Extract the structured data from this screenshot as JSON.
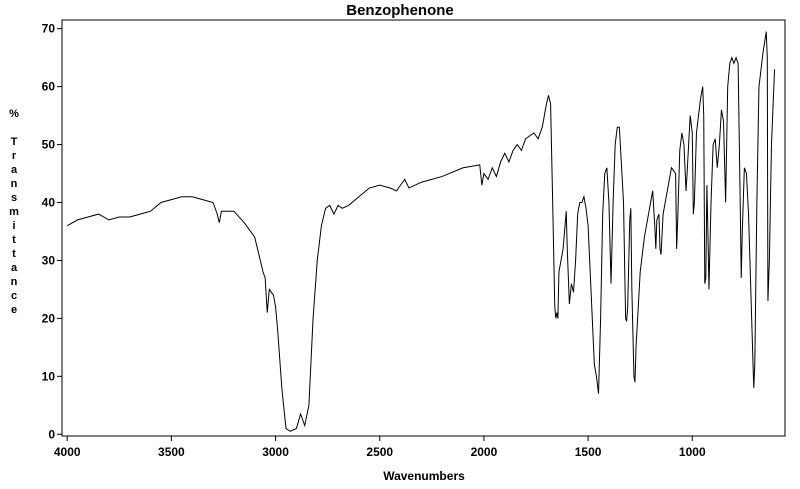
{
  "chart_data": {
    "type": "line",
    "title": "Benzophenone",
    "x_label": "Wavenumbers",
    "y_label": "% Transmittance",
    "xlim": [
      4025,
      555
    ],
    "ylim": [
      -0.3,
      71.5
    ],
    "xticks": [
      4000,
      3500,
      3000,
      2500,
      2000,
      1500,
      1000
    ],
    "yticks": [
      0,
      10,
      20,
      30,
      40,
      50,
      60,
      70
    ],
    "series": [
      {
        "color": "#000000",
        "x": [
          4000,
          3950,
          3900,
          3850,
          3800,
          3750,
          3700,
          3650,
          3600,
          3550,
          3500,
          3450,
          3400,
          3350,
          3300,
          3280,
          3270,
          3260,
          3200,
          3150,
          3100,
          3080,
          3060,
          3050,
          3040,
          3030,
          3010,
          3000,
          2990,
          2970,
          2950,
          2930,
          2900,
          2880,
          2860,
          2840,
          2820,
          2800,
          2780,
          2760,
          2740,
          2720,
          2700,
          2680,
          2650,
          2600,
          2550,
          2500,
          2450,
          2420,
          2400,
          2380,
          2360,
          2300,
          2200,
          2100,
          2050,
          2020,
          2010,
          2000,
          1980,
          1960,
          1940,
          1920,
          1900,
          1880,
          1860,
          1840,
          1820,
          1800,
          1760,
          1740,
          1720,
          1700,
          1690,
          1680,
          1670,
          1660,
          1655,
          1650,
          1645,
          1640,
          1620,
          1605,
          1600,
          1590,
          1580,
          1570,
          1560,
          1550,
          1540,
          1530,
          1520,
          1510,
          1500,
          1490,
          1470,
          1460,
          1450,
          1440,
          1430,
          1420,
          1410,
          1400,
          1390,
          1380,
          1370,
          1360,
          1350,
          1330,
          1320,
          1315,
          1310,
          1300,
          1295,
          1290,
          1280,
          1275,
          1270,
          1250,
          1230,
          1210,
          1200,
          1190,
          1180,
          1175,
          1170,
          1160,
          1155,
          1150,
          1140,
          1120,
          1100,
          1080,
          1075,
          1070,
          1060,
          1050,
          1040,
          1030,
          1025,
          1010,
          1000,
          995,
          990,
          980,
          970,
          960,
          950,
          945,
          940,
          935,
          930,
          925,
          920,
          910,
          900,
          890,
          880,
          870,
          860,
          850,
          840,
          830,
          820,
          810,
          800,
          790,
          780,
          770,
          765,
          760,
          750,
          740,
          730,
          715,
          705,
          700,
          690,
          680,
          660,
          645,
          640,
          637,
          630,
          620,
          605
        ],
        "values": [
          36,
          37,
          37.5,
          38,
          37,
          37.5,
          37.5,
          38,
          38.5,
          40,
          40.5,
          41,
          41,
          40.5,
          40,
          38,
          36.5,
          38.5,
          38.5,
          36.5,
          34,
          31,
          28,
          27,
          21,
          25,
          24,
          22,
          18,
          8,
          1,
          0.5,
          1,
          3.5,
          1.5,
          5,
          20,
          30,
          36,
          39,
          39.5,
          38,
          39.5,
          39,
          39.5,
          41,
          42.5,
          43,
          42.5,
          42,
          43,
          44,
          42.5,
          43.5,
          44.5,
          46,
          46.3,
          46.5,
          43,
          45,
          44,
          46,
          44.5,
          47,
          48.5,
          47,
          49,
          50,
          49,
          51,
          52,
          51,
          53,
          57,
          58.5,
          57,
          40,
          22,
          20,
          21,
          20,
          28,
          32,
          38.5,
          32,
          22.5,
          26,
          24.5,
          30,
          38,
          40,
          40,
          41,
          39,
          36,
          28,
          12,
          10,
          7,
          20,
          38,
          45,
          46,
          40,
          26,
          40,
          50,
          53,
          53,
          40,
          20,
          19.5,
          22,
          37,
          39,
          25,
          10,
          9,
          15,
          28,
          34,
          38,
          40,
          42,
          36,
          32,
          37,
          38,
          32,
          31,
          38,
          42,
          46,
          45,
          32,
          37,
          49,
          52,
          50,
          42,
          45,
          55,
          52,
          38,
          40,
          52,
          55,
          58,
          60,
          55,
          26,
          27,
          43,
          35,
          25,
          40,
          50,
          51,
          46,
          50,
          56,
          54,
          40,
          60,
          64,
          65,
          64,
          65,
          64,
          40,
          27,
          35,
          46,
          45,
          38,
          20,
          8,
          12,
          40,
          60,
          66,
          69.5,
          65,
          23,
          30,
          50,
          63
        ]
      }
    ]
  }
}
